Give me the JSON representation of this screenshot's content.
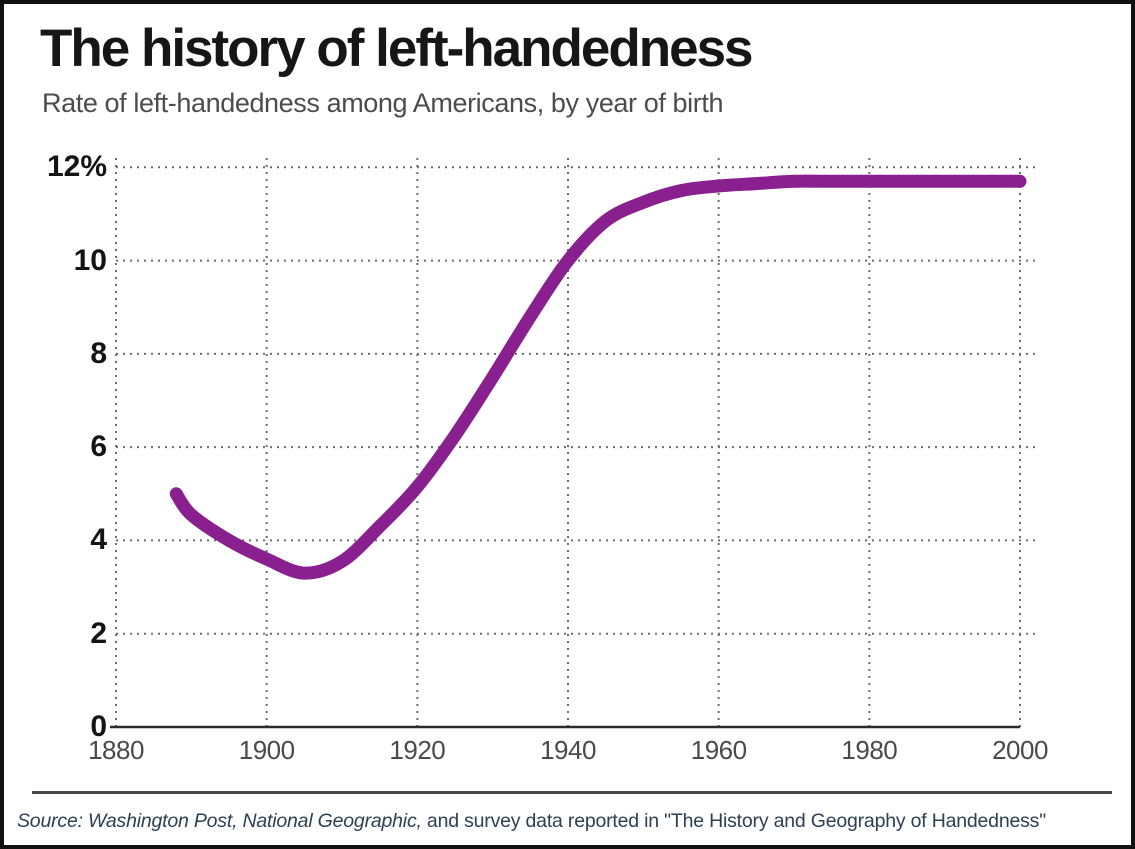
{
  "chart_data": {
    "type": "line",
    "title": "The history of left-handedness",
    "subtitle": "Rate of left-handedness among Americans, by year of birth",
    "source": {
      "italic_part": "Source: Washington Post, National Geographic,",
      "regular_part": " and survey data reported in \"The History and Geography of Handedness\""
    },
    "xlim": [
      1880,
      2000
    ],
    "ylim": [
      0,
      12
    ],
    "x_tick_values": [
      1880,
      1900,
      1920,
      1940,
      1960,
      1980,
      2000
    ],
    "x_tick_labels": [
      "1880",
      "1900",
      "1920",
      "1940",
      "1960",
      "1980",
      "2000"
    ],
    "y_tick_values": [
      12,
      10,
      8,
      6,
      4,
      2,
      0
    ],
    "y_tick_labels": [
      "12%",
      "10",
      "8",
      "6",
      "4",
      "2",
      "0"
    ],
    "y_gridline_values": [
      12,
      10,
      8,
      6,
      4,
      2
    ],
    "grid": "dotted",
    "legend": "none",
    "axis_color": "#2b2b2b",
    "grid_color": "#6e6e6e",
    "series": [
      {
        "name": "Rate of left-handedness among Americans",
        "color": "#8a1f8f",
        "x": [
          1888,
          1890,
          1895,
          1900,
          1905,
          1910,
          1915,
          1920,
          1925,
          1930,
          1935,
          1940,
          1945,
          1950,
          1955,
          1960,
          1965,
          1970,
          1975,
          1980,
          1985,
          1990,
          1995,
          2000
        ],
        "values": [
          5.0,
          4.55,
          4.0,
          3.6,
          3.3,
          3.55,
          4.3,
          5.15,
          6.25,
          7.5,
          8.8,
          10.0,
          10.85,
          11.25,
          11.5,
          11.6,
          11.65,
          11.7,
          11.7,
          11.7,
          11.7,
          11.7,
          11.7,
          11.7
        ]
      }
    ]
  }
}
